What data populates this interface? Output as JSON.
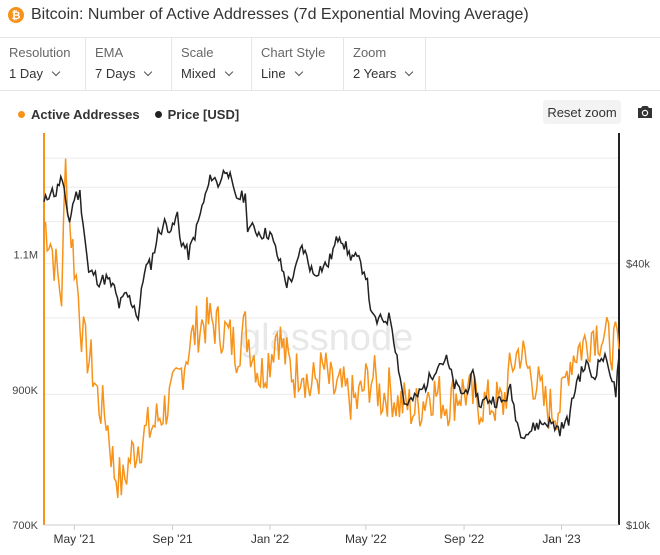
{
  "header": {
    "title": "Bitcoin: Number of Active Addresses (7d Exponential Moving Average)",
    "coin_symbol": "₿"
  },
  "controls": [
    {
      "label": "Resolution",
      "value": "1 Day"
    },
    {
      "label": "EMA",
      "value": "7 Days"
    },
    {
      "label": "Scale",
      "value": "Mixed"
    },
    {
      "label": "Chart Style",
      "value": "Line"
    },
    {
      "label": "Zoom",
      "value": "2 Years"
    }
  ],
  "toolbar": {
    "reset_zoom": "Reset zoom"
  },
  "watermark": "glassnode",
  "colors": {
    "active": "#f7931a",
    "price": "#222222"
  },
  "chart_data": {
    "type": "line",
    "legend_position": "top-left",
    "grid": true,
    "x_ticks": [
      "May '21",
      "Sep '21",
      "Jan '22",
      "May '22",
      "Sep '22",
      "Jan '23"
    ],
    "x_range": [
      "2021-03-24",
      "2023-03-14"
    ],
    "left_axis": {
      "ticks": [
        "1.1M",
        "900K",
        "700K"
      ],
      "ylim": [
        700000,
        1280000
      ]
    },
    "right_axis": {
      "ticks": [
        "$40k",
        "$10k"
      ],
      "scale": "log",
      "ylim": [
        10000,
        80000
      ]
    },
    "series": [
      {
        "name": "Active Addresses",
        "axis": "left",
        "points": [
          [
            "2021-03-24",
            1150000
          ],
          [
            "2021-04-01",
            1120000
          ],
          [
            "2021-04-08",
            1080000
          ],
          [
            "2021-04-15",
            1040000
          ],
          [
            "2021-04-20",
            1230000
          ],
          [
            "2021-04-25",
            1150000
          ],
          [
            "2021-05-01",
            1090000
          ],
          [
            "2021-05-06",
            1040000
          ],
          [
            "2021-05-10",
            990000
          ],
          [
            "2021-05-15",
            960000
          ],
          [
            "2021-05-22",
            940000
          ],
          [
            "2021-06-01",
            880000
          ],
          [
            "2021-06-10",
            860000
          ],
          [
            "2021-06-20",
            780000
          ],
          [
            "2021-07-01",
            760000
          ],
          [
            "2021-07-10",
            800000
          ],
          [
            "2021-07-20",
            820000
          ],
          [
            "2021-08-01",
            840000
          ],
          [
            "2021-08-10",
            850000
          ],
          [
            "2021-08-20",
            870000
          ],
          [
            "2021-09-01",
            890000
          ],
          [
            "2021-09-10",
            920000
          ],
          [
            "2021-09-20",
            960000
          ],
          [
            "2021-10-01",
            990000
          ],
          [
            "2021-10-10",
            1000000
          ],
          [
            "2021-10-20",
            1000000
          ],
          [
            "2021-11-01",
            990000
          ],
          [
            "2021-11-10",
            980000
          ],
          [
            "2021-11-20",
            960000
          ],
          [
            "2021-12-01",
            990000
          ],
          [
            "2021-12-10",
            960000
          ],
          [
            "2021-12-20",
            920000
          ],
          [
            "2022-01-01",
            950000
          ],
          [
            "2022-01-10",
            990000
          ],
          [
            "2022-01-20",
            950000
          ],
          [
            "2022-02-01",
            920000
          ],
          [
            "2022-02-10",
            940000
          ],
          [
            "2022-02-20",
            900000
          ],
          [
            "2022-03-01",
            920000
          ],
          [
            "2022-03-10",
            930000
          ],
          [
            "2022-03-20",
            900000
          ],
          [
            "2022-04-01",
            900000
          ],
          [
            "2022-04-10",
            890000
          ],
          [
            "2022-04-20",
            880000
          ],
          [
            "2022-05-01",
            910000
          ],
          [
            "2022-05-10",
            920000
          ],
          [
            "2022-05-20",
            890000
          ],
          [
            "2022-06-01",
            900000
          ],
          [
            "2022-06-10",
            880000
          ],
          [
            "2022-06-20",
            880000
          ],
          [
            "2022-07-01",
            870000
          ],
          [
            "2022-07-10",
            880000
          ],
          [
            "2022-07-20",
            900000
          ],
          [
            "2022-08-01",
            890000
          ],
          [
            "2022-08-10",
            880000
          ],
          [
            "2022-08-20",
            890000
          ],
          [
            "2022-09-01",
            900000
          ],
          [
            "2022-09-10",
            890000
          ],
          [
            "2022-09-20",
            880000
          ],
          [
            "2022-10-01",
            880000
          ],
          [
            "2022-10-10",
            880000
          ],
          [
            "2022-10-20",
            880000
          ],
          [
            "2022-11-01",
            940000
          ],
          [
            "2022-11-10",
            960000
          ],
          [
            "2022-11-20",
            930000
          ],
          [
            "2022-12-01",
            910000
          ],
          [
            "2022-12-10",
            880000
          ],
          [
            "2022-12-20",
            870000
          ],
          [
            "2023-01-01",
            880000
          ],
          [
            "2023-01-10",
            940000
          ],
          [
            "2023-01-20",
            960000
          ],
          [
            "2023-02-01",
            970000
          ],
          [
            "2023-02-10",
            990000
          ],
          [
            "2023-02-20",
            980000
          ],
          [
            "2023-03-01",
            970000
          ],
          [
            "2023-03-14",
            960000
          ]
        ]
      },
      {
        "name": "Price [USD]",
        "axis": "right",
        "points": [
          [
            "2021-03-24",
            55000
          ],
          [
            "2021-04-01",
            59000
          ],
          [
            "2021-04-08",
            58000
          ],
          [
            "2021-04-14",
            63000
          ],
          [
            "2021-04-20",
            56000
          ],
          [
            "2021-04-25",
            50000
          ],
          [
            "2021-05-01",
            57000
          ],
          [
            "2021-05-08",
            58000
          ],
          [
            "2021-05-12",
            50000
          ],
          [
            "2021-05-19",
            38000
          ],
          [
            "2021-05-25",
            38000
          ],
          [
            "2021-06-01",
            36500
          ],
          [
            "2021-06-10",
            37000
          ],
          [
            "2021-06-20",
            35000
          ],
          [
            "2021-06-26",
            32000
          ],
          [
            "2021-07-05",
            34000
          ],
          [
            "2021-07-15",
            32000
          ],
          [
            "2021-07-20",
            30000
          ],
          [
            "2021-07-28",
            39000
          ],
          [
            "2021-08-05",
            40000
          ],
          [
            "2021-08-14",
            47000
          ],
          [
            "2021-08-22",
            49500
          ],
          [
            "2021-09-01",
            48000
          ],
          [
            "2021-09-07",
            52000
          ],
          [
            "2021-09-10",
            46000
          ],
          [
            "2021-09-21",
            42000
          ],
          [
            "2021-10-01",
            48000
          ],
          [
            "2021-10-08",
            54000
          ],
          [
            "2021-10-20",
            64000
          ],
          [
            "2021-10-28",
            61000
          ],
          [
            "2021-11-08",
            67000
          ],
          [
            "2021-11-18",
            57000
          ],
          [
            "2021-12-01",
            57000
          ],
          [
            "2021-12-04",
            49000
          ],
          [
            "2021-12-20",
            47000
          ],
          [
            "2022-01-01",
            47000
          ],
          [
            "2022-01-10",
            42000
          ],
          [
            "2022-01-22",
            36000
          ],
          [
            "2022-02-01",
            38000
          ],
          [
            "2022-02-10",
            44000
          ],
          [
            "2022-02-24",
            38000
          ],
          [
            "2022-03-05",
            39000
          ],
          [
            "2022-03-15",
            40000
          ],
          [
            "2022-03-29",
            47000
          ],
          [
            "2022-04-10",
            42000
          ],
          [
            "2022-04-20",
            41000
          ],
          [
            "2022-05-01",
            38000
          ],
          [
            "2022-05-09",
            30000
          ],
          [
            "2022-05-15",
            29500
          ],
          [
            "2022-06-01",
            30000
          ],
          [
            "2022-06-13",
            22000
          ],
          [
            "2022-06-18",
            19000
          ],
          [
            "2022-07-01",
            19500
          ],
          [
            "2022-07-15",
            21000
          ],
          [
            "2022-07-30",
            23500
          ],
          [
            "2022-08-10",
            24000
          ],
          [
            "2022-08-20",
            21000
          ],
          [
            "2022-09-01",
            20000
          ],
          [
            "2022-09-12",
            22000
          ],
          [
            "2022-09-20",
            19000
          ],
          [
            "2022-10-01",
            19500
          ],
          [
            "2022-10-20",
            19200
          ],
          [
            "2022-10-29",
            20500
          ],
          [
            "2022-11-09",
            16500
          ],
          [
            "2022-11-20",
            16300
          ],
          [
            "2022-12-01",
            17000
          ],
          [
            "2022-12-15",
            17300
          ],
          [
            "2022-12-30",
            16600
          ],
          [
            "2023-01-10",
            17500
          ],
          [
            "2023-01-20",
            21500
          ],
          [
            "2023-02-01",
            23500
          ],
          [
            "2023-02-10",
            21800
          ],
          [
            "2023-02-20",
            24500
          ],
          [
            "2023-03-01",
            23500
          ],
          [
            "2023-03-10",
            20000
          ],
          [
            "2023-03-14",
            24500
          ]
        ]
      }
    ]
  }
}
